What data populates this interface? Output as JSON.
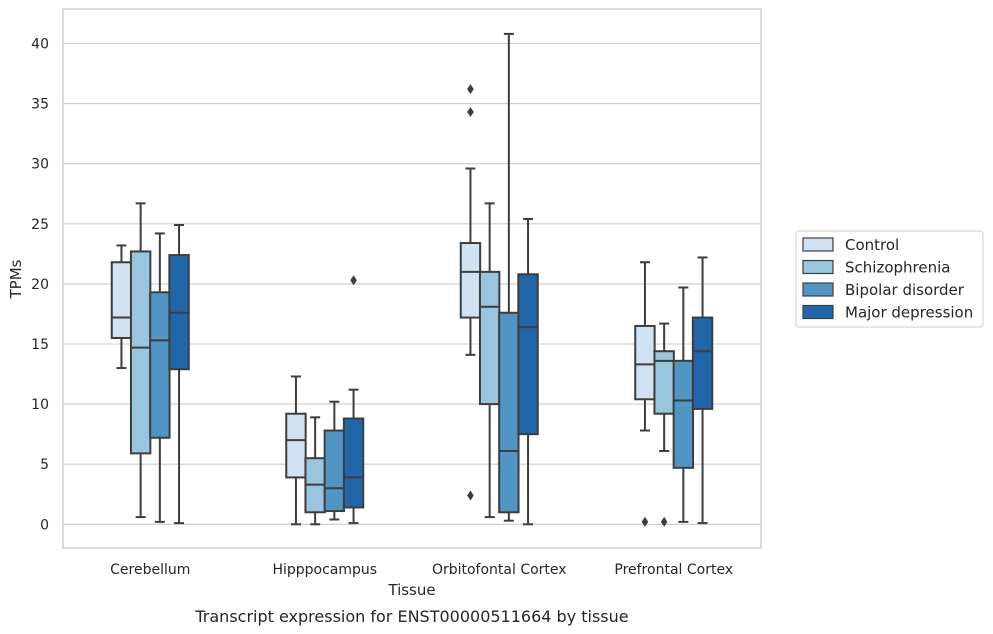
{
  "chart_data": {
    "type": "box",
    "ylabel": "TPMs",
    "xlabel": "Tissue",
    "caption": "Transcript expression for ENST00000511664 by tissue",
    "ylim": [
      -2,
      43
    ],
    "yticks": [
      0,
      5,
      10,
      15,
      20,
      25,
      30,
      35,
      40
    ],
    "grid": "horizontal",
    "legend_position": "right",
    "categories": [
      "Cerebellum",
      "Hipppocampus",
      "Orbitofontal Cortex",
      "Prefrontal Cortex"
    ],
    "series": [
      {
        "name": "Control",
        "color": "#d1e2f2",
        "boxes": [
          {
            "whislo": 13.0,
            "q1": 15.5,
            "med": 17.2,
            "q3": 21.8,
            "whishi": 23.2,
            "fliers": []
          },
          {
            "whislo": 0.0,
            "q1": 3.9,
            "med": 7.0,
            "q3": 9.2,
            "whishi": 12.3,
            "fliers": []
          },
          {
            "whislo": 14.1,
            "q1": 17.2,
            "med": 21.0,
            "q3": 23.4,
            "whishi": 29.6,
            "fliers": [
              36.2,
              34.3,
              2.4
            ]
          },
          {
            "whislo": 7.8,
            "q1": 10.4,
            "med": 13.3,
            "q3": 16.5,
            "whishi": 21.8,
            "fliers": [
              0.2
            ]
          }
        ]
      },
      {
        "name": "Schizophrenia",
        "color": "#9ac5de",
        "boxes": [
          {
            "whislo": 0.6,
            "q1": 5.9,
            "med": 14.7,
            "q3": 22.7,
            "whishi": 26.7,
            "fliers": []
          },
          {
            "whislo": 0.0,
            "q1": 1.0,
            "med": 3.3,
            "q3": 5.5,
            "whishi": 8.9,
            "fliers": []
          },
          {
            "whislo": 0.6,
            "q1": 10.0,
            "med": 18.1,
            "q3": 21.0,
            "whishi": 26.7,
            "fliers": []
          },
          {
            "whislo": 6.1,
            "q1": 9.2,
            "med": 13.6,
            "q3": 14.4,
            "whishi": 16.7,
            "fliers": [
              0.2
            ]
          }
        ]
      },
      {
        "name": "Bipolar disorder",
        "color": "#5195c5",
        "boxes": [
          {
            "whislo": 0.2,
            "q1": 7.2,
            "med": 15.3,
            "q3": 19.3,
            "whishi": 24.2,
            "fliers": []
          },
          {
            "whislo": 0.4,
            "q1": 1.1,
            "med": 3.0,
            "q3": 7.8,
            "whishi": 10.2,
            "fliers": []
          },
          {
            "whislo": 0.3,
            "q1": 1.0,
            "med": 6.1,
            "q3": 17.6,
            "whishi": 40.8,
            "fliers": []
          },
          {
            "whislo": 0.2,
            "q1": 4.7,
            "med": 10.3,
            "q3": 13.6,
            "whishi": 19.7,
            "fliers": []
          }
        ]
      },
      {
        "name": "Major depression",
        "color": "#2166a9",
        "boxes": [
          {
            "whislo": 0.1,
            "q1": 12.9,
            "med": 17.6,
            "q3": 22.4,
            "whishi": 24.9,
            "fliers": []
          },
          {
            "whislo": 0.1,
            "q1": 1.4,
            "med": 3.9,
            "q3": 8.8,
            "whishi": 11.2,
            "fliers": [
              20.3
            ]
          },
          {
            "whislo": 0.0,
            "q1": 7.5,
            "med": 16.4,
            "q3": 20.8,
            "whishi": 25.4,
            "fliers": []
          },
          {
            "whislo": 0.1,
            "q1": 9.6,
            "med": 14.4,
            "q3": 17.2,
            "whishi": 22.2,
            "fliers": []
          }
        ]
      }
    ]
  }
}
